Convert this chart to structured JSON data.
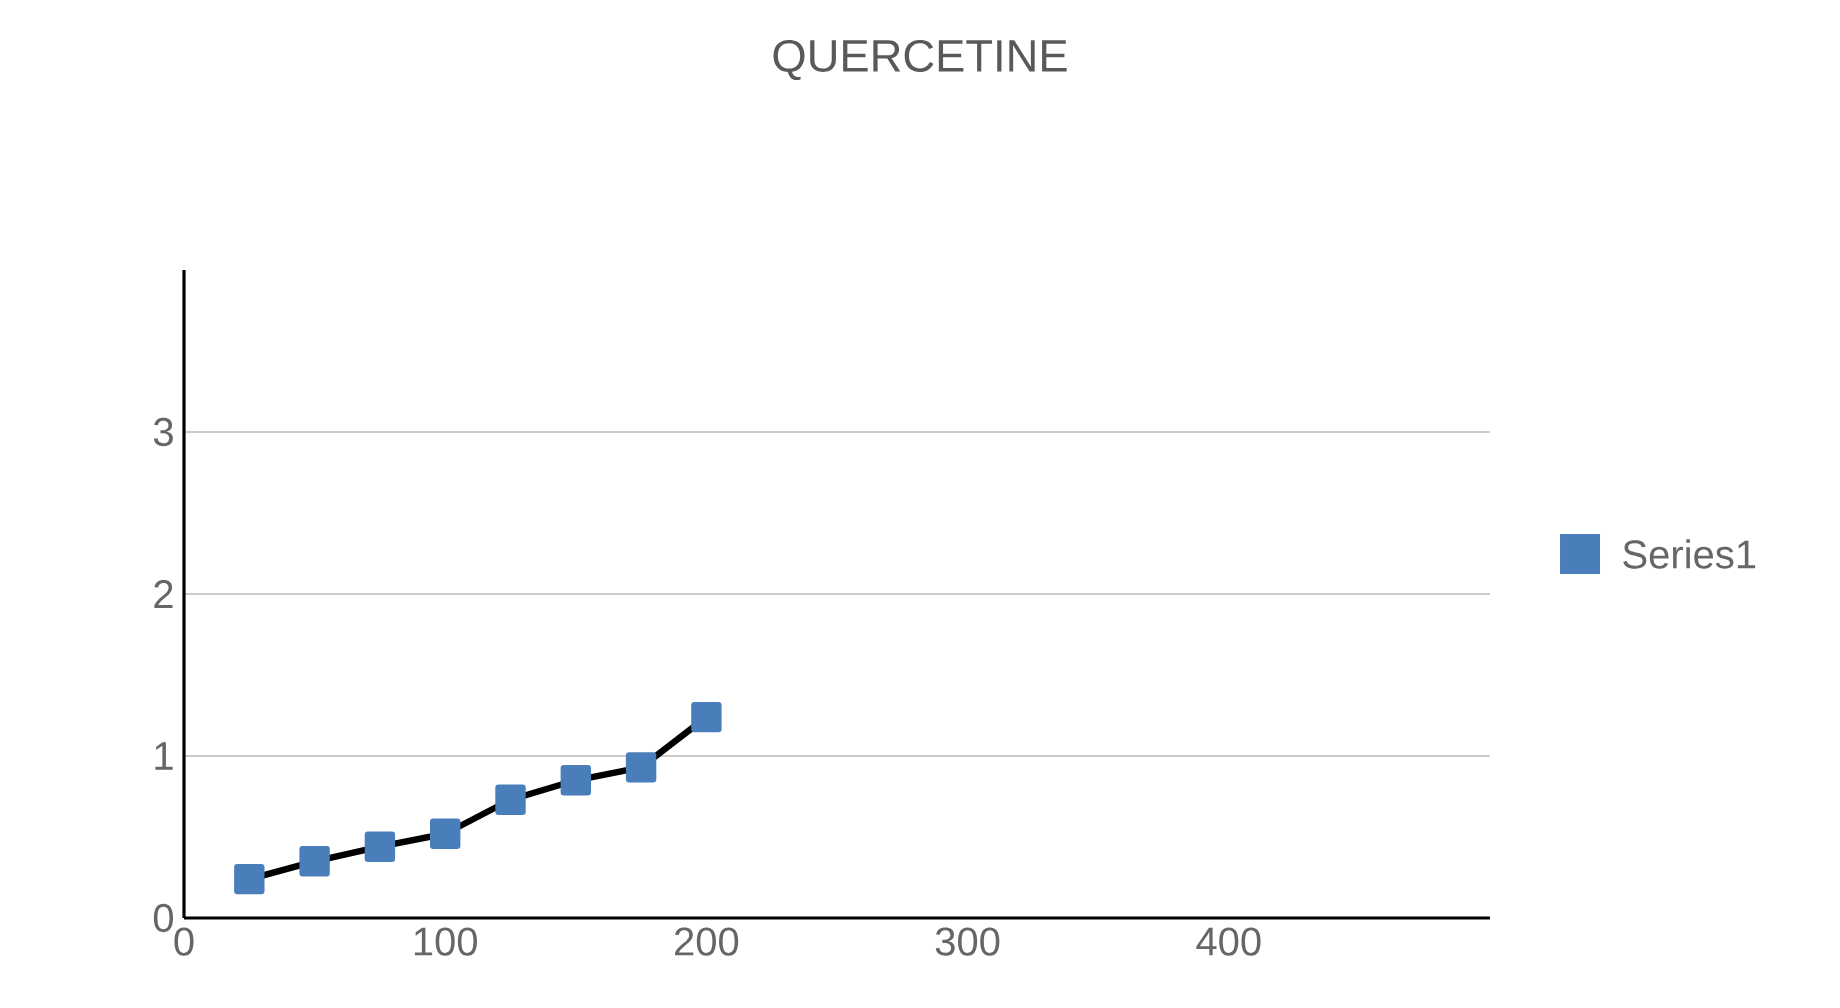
{
  "chart_data": {
    "type": "line",
    "title": "QUERCETINE",
    "x": [
      25,
      50,
      75,
      100,
      125,
      150,
      175,
      200
    ],
    "series": [
      {
        "name": "Series1",
        "color": "#4a7ebb",
        "values": [
          0.24,
          0.35,
          0.44,
          0.52,
          0.73,
          0.85,
          0.93,
          1.24
        ]
      }
    ],
    "xlim": [
      0,
      500
    ],
    "ylim": [
      0,
      4
    ],
    "xticks": [
      0,
      100,
      200,
      300,
      400
    ],
    "yticks": [
      0,
      1,
      2,
      3
    ],
    "grid": "y",
    "legend": "right",
    "marker": "square",
    "line_style": "solid"
  }
}
